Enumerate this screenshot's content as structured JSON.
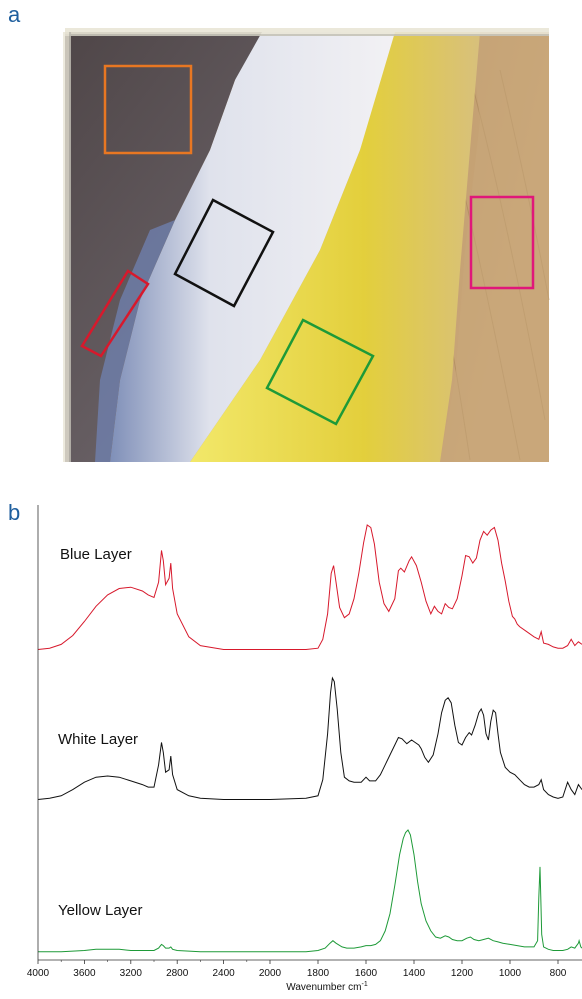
{
  "panels": {
    "a_label": "a",
    "b_label": "b"
  },
  "micrograph": {
    "regions": [
      {
        "name": "dark-substrate-region",
        "color": "#e87722"
      },
      {
        "name": "white-layer-region",
        "color": "#111111"
      },
      {
        "name": "blue-layer-region",
        "color": "#d7192c"
      },
      {
        "name": "yellow-layer-region",
        "color": "#1e9a38"
      },
      {
        "name": "wood-region",
        "color": "#e0177a"
      }
    ]
  },
  "chart_data": {
    "type": "line",
    "xlabel": "Wavenumber cm",
    "xlabel_sup": "-1",
    "xlim": [
      4000,
      700
    ],
    "x_reversed": true,
    "x_ticks": [
      4000,
      3600,
      3200,
      2800,
      2400,
      2000,
      1800,
      1600,
      1400,
      1200,
      1000,
      800
    ],
    "ylabel": "",
    "y_ticks_shown": false,
    "grid": false,
    "series": [
      {
        "name": "Blue Layer",
        "color": "#d7192c",
        "points": [
          [
            4000,
            0.02
          ],
          [
            3900,
            0.03
          ],
          [
            3800,
            0.06
          ],
          [
            3700,
            0.13
          ],
          [
            3600,
            0.24
          ],
          [
            3500,
            0.36
          ],
          [
            3400,
            0.45
          ],
          [
            3300,
            0.5
          ],
          [
            3200,
            0.51
          ],
          [
            3100,
            0.48
          ],
          [
            3050,
            0.45
          ],
          [
            3000,
            0.43
          ],
          [
            2960,
            0.55
          ],
          [
            2935,
            0.8
          ],
          [
            2920,
            0.72
          ],
          [
            2900,
            0.53
          ],
          [
            2870,
            0.58
          ],
          [
            2855,
            0.7
          ],
          [
            2840,
            0.5
          ],
          [
            2800,
            0.3
          ],
          [
            2700,
            0.12
          ],
          [
            2600,
            0.05
          ],
          [
            2400,
            0.02
          ],
          [
            2000,
            0.02
          ],
          [
            1850,
            0.02
          ],
          [
            1800,
            0.03
          ],
          [
            1780,
            0.1
          ],
          [
            1760,
            0.3
          ],
          [
            1745,
            0.62
          ],
          [
            1735,
            0.68
          ],
          [
            1725,
            0.55
          ],
          [
            1710,
            0.35
          ],
          [
            1690,
            0.27
          ],
          [
            1670,
            0.3
          ],
          [
            1650,
            0.42
          ],
          [
            1630,
            0.62
          ],
          [
            1610,
            0.86
          ],
          [
            1595,
            1.0
          ],
          [
            1580,
            0.98
          ],
          [
            1565,
            0.85
          ],
          [
            1545,
            0.55
          ],
          [
            1525,
            0.38
          ],
          [
            1505,
            0.32
          ],
          [
            1480,
            0.42
          ],
          [
            1465,
            0.64
          ],
          [
            1455,
            0.66
          ],
          [
            1440,
            0.63
          ],
          [
            1420,
            0.72
          ],
          [
            1410,
            0.75
          ],
          [
            1390,
            0.68
          ],
          [
            1370,
            0.55
          ],
          [
            1350,
            0.4
          ],
          [
            1330,
            0.3
          ],
          [
            1315,
            0.36
          ],
          [
            1300,
            0.32
          ],
          [
            1285,
            0.3
          ],
          [
            1270,
            0.38
          ],
          [
            1255,
            0.35
          ],
          [
            1240,
            0.34
          ],
          [
            1220,
            0.42
          ],
          [
            1200,
            0.6
          ],
          [
            1185,
            0.76
          ],
          [
            1170,
            0.75
          ],
          [
            1155,
            0.7
          ],
          [
            1140,
            0.74
          ],
          [
            1125,
            0.88
          ],
          [
            1110,
            0.95
          ],
          [
            1095,
            0.92
          ],
          [
            1080,
            0.96
          ],
          [
            1065,
            0.98
          ],
          [
            1050,
            0.88
          ],
          [
            1035,
            0.7
          ],
          [
            1020,
            0.56
          ],
          [
            1005,
            0.4
          ],
          [
            990,
            0.28
          ],
          [
            980,
            0.26
          ],
          [
            970,
            0.22
          ],
          [
            960,
            0.2
          ],
          [
            930,
            0.16
          ],
          [
            900,
            0.12
          ],
          [
            880,
            0.1
          ],
          [
            870,
            0.16
          ],
          [
            860,
            0.07
          ],
          [
            840,
            0.06
          ],
          [
            820,
            0.04
          ],
          [
            800,
            0.03
          ],
          [
            780,
            0.03
          ],
          [
            760,
            0.05
          ],
          [
            745,
            0.1
          ],
          [
            730,
            0.05
          ],
          [
            715,
            0.08
          ],
          [
            700,
            0.06
          ]
        ]
      },
      {
        "name": "White Layer",
        "color": "#111111",
        "points": [
          [
            4000,
            0.02
          ],
          [
            3900,
            0.03
          ],
          [
            3800,
            0.05
          ],
          [
            3700,
            0.1
          ],
          [
            3600,
            0.16
          ],
          [
            3500,
            0.2
          ],
          [
            3400,
            0.21
          ],
          [
            3300,
            0.2
          ],
          [
            3200,
            0.17
          ],
          [
            3100,
            0.14
          ],
          [
            3050,
            0.12
          ],
          [
            3000,
            0.12
          ],
          [
            2960,
            0.3
          ],
          [
            2935,
            0.48
          ],
          [
            2920,
            0.4
          ],
          [
            2900,
            0.24
          ],
          [
            2870,
            0.26
          ],
          [
            2855,
            0.37
          ],
          [
            2840,
            0.22
          ],
          [
            2800,
            0.1
          ],
          [
            2700,
            0.05
          ],
          [
            2600,
            0.03
          ],
          [
            2400,
            0.02
          ],
          [
            2000,
            0.02
          ],
          [
            1850,
            0.03
          ],
          [
            1800,
            0.05
          ],
          [
            1780,
            0.18
          ],
          [
            1760,
            0.55
          ],
          [
            1748,
            0.88
          ],
          [
            1740,
            1.0
          ],
          [
            1732,
            0.97
          ],
          [
            1720,
            0.75
          ],
          [
            1705,
            0.4
          ],
          [
            1690,
            0.2
          ],
          [
            1670,
            0.17
          ],
          [
            1650,
            0.16
          ],
          [
            1620,
            0.16
          ],
          [
            1600,
            0.2
          ],
          [
            1585,
            0.17
          ],
          [
            1560,
            0.17
          ],
          [
            1540,
            0.22
          ],
          [
            1520,
            0.3
          ],
          [
            1500,
            0.38
          ],
          [
            1480,
            0.46
          ],
          [
            1465,
            0.52
          ],
          [
            1450,
            0.51
          ],
          [
            1430,
            0.47
          ],
          [
            1410,
            0.5
          ],
          [
            1395,
            0.48
          ],
          [
            1380,
            0.46
          ],
          [
            1370,
            0.43
          ],
          [
            1355,
            0.36
          ],
          [
            1340,
            0.32
          ],
          [
            1320,
            0.38
          ],
          [
            1300,
            0.55
          ],
          [
            1285,
            0.72
          ],
          [
            1270,
            0.82
          ],
          [
            1258,
            0.84
          ],
          [
            1245,
            0.8
          ],
          [
            1230,
            0.62
          ],
          [
            1215,
            0.48
          ],
          [
            1200,
            0.46
          ],
          [
            1185,
            0.52
          ],
          [
            1170,
            0.56
          ],
          [
            1160,
            0.54
          ],
          [
            1145,
            0.62
          ],
          [
            1130,
            0.72
          ],
          [
            1120,
            0.75
          ],
          [
            1110,
            0.7
          ],
          [
            1100,
            0.55
          ],
          [
            1090,
            0.5
          ],
          [
            1080,
            0.65
          ],
          [
            1070,
            0.74
          ],
          [
            1060,
            0.72
          ],
          [
            1050,
            0.55
          ],
          [
            1040,
            0.4
          ],
          [
            1020,
            0.28
          ],
          [
            1000,
            0.24
          ],
          [
            980,
            0.22
          ],
          [
            960,
            0.18
          ],
          [
            940,
            0.14
          ],
          [
            920,
            0.12
          ],
          [
            900,
            0.12
          ],
          [
            880,
            0.14
          ],
          [
            870,
            0.18
          ],
          [
            860,
            0.1
          ],
          [
            840,
            0.06
          ],
          [
            820,
            0.04
          ],
          [
            800,
            0.03
          ],
          [
            780,
            0.04
          ],
          [
            760,
            0.16
          ],
          [
            745,
            0.1
          ],
          [
            730,
            0.06
          ],
          [
            715,
            0.14
          ],
          [
            700,
            0.1
          ]
        ]
      },
      {
        "name": "Yellow Layer",
        "color": "#1e9a38",
        "points": [
          [
            4000,
            0.01
          ],
          [
            3800,
            0.01
          ],
          [
            3600,
            0.02
          ],
          [
            3500,
            0.03
          ],
          [
            3400,
            0.03
          ],
          [
            3300,
            0.03
          ],
          [
            3200,
            0.02
          ],
          [
            3000,
            0.02
          ],
          [
            2960,
            0.04
          ],
          [
            2935,
            0.07
          ],
          [
            2920,
            0.06
          ],
          [
            2900,
            0.04
          ],
          [
            2870,
            0.04
          ],
          [
            2855,
            0.05
          ],
          [
            2840,
            0.03
          ],
          [
            2800,
            0.02
          ],
          [
            2600,
            0.01
          ],
          [
            2400,
            0.01
          ],
          [
            2000,
            0.01
          ],
          [
            1850,
            0.01
          ],
          [
            1800,
            0.02
          ],
          [
            1770,
            0.04
          ],
          [
            1750,
            0.08
          ],
          [
            1738,
            0.1
          ],
          [
            1725,
            0.08
          ],
          [
            1700,
            0.05
          ],
          [
            1680,
            0.04
          ],
          [
            1650,
            0.04
          ],
          [
            1620,
            0.05
          ],
          [
            1600,
            0.06
          ],
          [
            1580,
            0.06
          ],
          [
            1560,
            0.07
          ],
          [
            1540,
            0.1
          ],
          [
            1520,
            0.18
          ],
          [
            1500,
            0.32
          ],
          [
            1480,
            0.55
          ],
          [
            1460,
            0.8
          ],
          [
            1445,
            0.93
          ],
          [
            1435,
            0.98
          ],
          [
            1425,
            1.0
          ],
          [
            1415,
            0.96
          ],
          [
            1400,
            0.8
          ],
          [
            1385,
            0.58
          ],
          [
            1370,
            0.4
          ],
          [
            1350,
            0.26
          ],
          [
            1330,
            0.18
          ],
          [
            1310,
            0.13
          ],
          [
            1290,
            0.12
          ],
          [
            1270,
            0.14
          ],
          [
            1255,
            0.13
          ],
          [
            1240,
            0.11
          ],
          [
            1220,
            0.1
          ],
          [
            1200,
            0.1
          ],
          [
            1180,
            0.12
          ],
          [
            1165,
            0.13
          ],
          [
            1150,
            0.11
          ],
          [
            1130,
            0.1
          ],
          [
            1110,
            0.11
          ],
          [
            1090,
            0.12
          ],
          [
            1070,
            0.1
          ],
          [
            1050,
            0.09
          ],
          [
            1030,
            0.08
          ],
          [
            1000,
            0.07
          ],
          [
            970,
            0.06
          ],
          [
            940,
            0.05
          ],
          [
            920,
            0.05
          ],
          [
            900,
            0.05
          ],
          [
            885,
            0.1
          ],
          [
            880,
            0.45
          ],
          [
            875,
            0.7
          ],
          [
            872,
            0.48
          ],
          [
            868,
            0.15
          ],
          [
            860,
            0.05
          ],
          [
            840,
            0.03
          ],
          [
            820,
            0.02
          ],
          [
            800,
            0.02
          ],
          [
            780,
            0.02
          ],
          [
            760,
            0.03
          ],
          [
            745,
            0.05
          ],
          [
            730,
            0.04
          ],
          [
            715,
            0.08
          ],
          [
            712,
            0.1
          ],
          [
            705,
            0.05
          ],
          [
            700,
            0.04
          ]
        ]
      }
    ]
  }
}
